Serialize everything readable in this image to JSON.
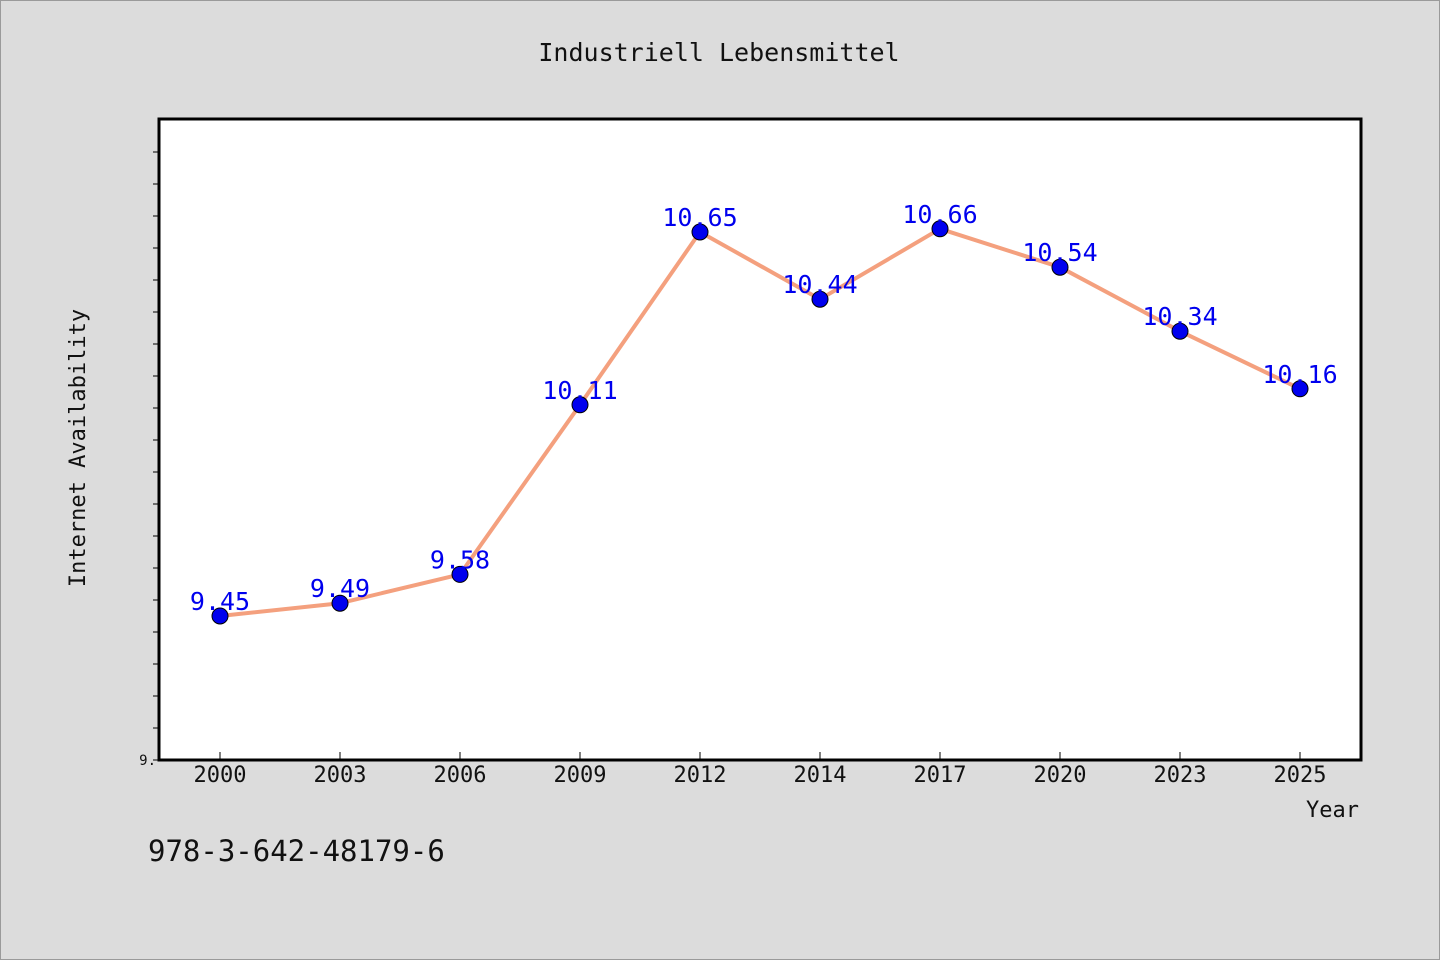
{
  "caption": "978-3-642-48179-6",
  "chart_data": {
    "type": "line",
    "title": "Industriell Lebensmittel",
    "xlabel": "Year",
    "ylabel": "Internet Availability",
    "categories": [
      "2000",
      "2003",
      "2006",
      "2009",
      "2012",
      "2014",
      "2017",
      "2020",
      "2023",
      "2025"
    ],
    "series": [
      {
        "values": [
          9.45,
          9.49,
          9.58,
          10.11,
          10.65,
          10.44,
          10.66,
          10.54,
          10.34,
          10.16
        ],
        "line_color": "#f4a07e",
        "marker_color": "#0000ee",
        "label_color": "#0000ee"
      }
    ],
    "data_labels": [
      "9.45",
      "9.49",
      "9.58",
      "10.11",
      "10.65",
      "10.44",
      "10.66",
      "10.54",
      "10.34",
      "10.16"
    ],
    "ylim": [
      9.0,
      11.0
    ],
    "y_tick_step": 0.1,
    "y_tick_labels": [
      "9."
    ],
    "grid": false,
    "legend": "none",
    "plot_background": "#ffffff",
    "page_background": "#dcdcdc"
  }
}
